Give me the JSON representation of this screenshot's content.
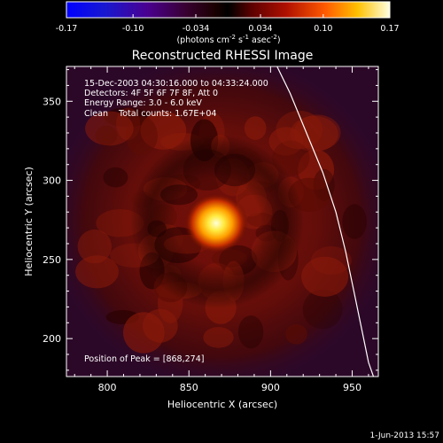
{
  "chart_data": {
    "type": "heatmap",
    "title": "Reconstructed RHESSI Image",
    "colorbar": {
      "ticks": [
        "-0.17",
        "-0.10",
        "-0.034",
        "0.034",
        "0.10",
        "0.17"
      ],
      "tick_values": [
        -0.17,
        -0.1,
        -0.034,
        0.034,
        0.1,
        0.17
      ],
      "unit_prefix": "(photons cm",
      "unit_exp1": "-2",
      "unit_mid": " s",
      "unit_exp2": "-1",
      "unit_mid2": " asec",
      "unit_exp3": "-2",
      "unit_suffix": ")",
      "range": [
        -0.17,
        0.17
      ]
    },
    "xlabel": "Heliocentric X (arcsec)",
    "ylabel": "Heliocentric Y (arcsec)",
    "xlim": [
      775,
      966
    ],
    "ylim": [
      176,
      372
    ],
    "xticks": [
      800,
      850,
      900,
      950
    ],
    "yticks": [
      200,
      250,
      300,
      350
    ],
    "info_lines": [
      "15-Dec-2003 04:30:16.000 to 04:33:24.000",
      "Detectors: 4F 5F 6F 7F 8F, Att 0",
      "Energy Range: 3.0 - 6.0 keV",
      "Clean    Total counts: 1.67E+04"
    ],
    "peak_label": "Position of Peak = [868,274]",
    "peak": {
      "x": 868,
      "y": 274,
      "value": 0.17
    },
    "limb_curve": [
      [
        904,
        372
      ],
      [
        912,
        355
      ],
      [
        922,
        330
      ],
      [
        932,
        305
      ],
      [
        940,
        280
      ],
      [
        946,
        255
      ],
      [
        951,
        230
      ],
      [
        956,
        205
      ],
      [
        960,
        185
      ],
      [
        963,
        176
      ]
    ],
    "footer": "1-Jun-2013 15:57"
  }
}
